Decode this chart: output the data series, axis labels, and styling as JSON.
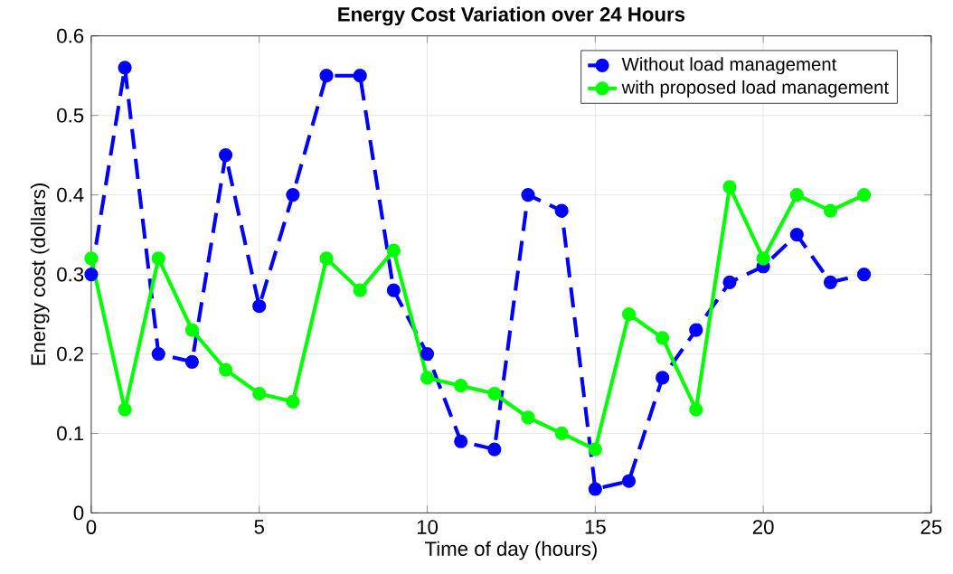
{
  "chart_data": {
    "type": "line",
    "title": "Energy Cost Variation over 24 Hours",
    "xlabel": "Time of day (hours)",
    "ylabel": "Energy cost (dollars)",
    "x": [
      0,
      1,
      2,
      3,
      4,
      5,
      6,
      7,
      8,
      9,
      10,
      11,
      12,
      13,
      14,
      15,
      16,
      17,
      18,
      19,
      20,
      21,
      22,
      23
    ],
    "series": [
      {
        "name": "Without load management",
        "color": "#0000ff",
        "line_style": "dashed",
        "values": [
          0.3,
          0.56,
          0.2,
          0.19,
          0.45,
          0.26,
          0.4,
          0.55,
          0.55,
          0.28,
          0.2,
          0.09,
          0.08,
          0.4,
          0.38,
          0.03,
          0.04,
          0.17,
          0.23,
          0.29,
          0.31,
          0.35,
          0.29,
          0.3
        ]
      },
      {
        "name": "with proposed load management",
        "color": "#00ff00",
        "line_style": "solid",
        "values": [
          0.32,
          0.13,
          0.32,
          0.23,
          0.18,
          0.15,
          0.14,
          0.32,
          0.28,
          0.33,
          0.17,
          0.16,
          0.15,
          0.12,
          0.1,
          0.08,
          0.25,
          0.22,
          0.13,
          0.41,
          0.32,
          0.4,
          0.38,
          0.4
        ]
      }
    ],
    "xlim": [
      0,
      25
    ],
    "ylim": [
      0,
      0.6
    ],
    "xticks": [
      0,
      5,
      10,
      15,
      20,
      25
    ],
    "yticks": [
      0,
      0.1,
      0.2,
      0.3,
      0.4,
      0.5,
      0.6
    ],
    "grid": true,
    "legend": "top right",
    "marker": "circle"
  }
}
